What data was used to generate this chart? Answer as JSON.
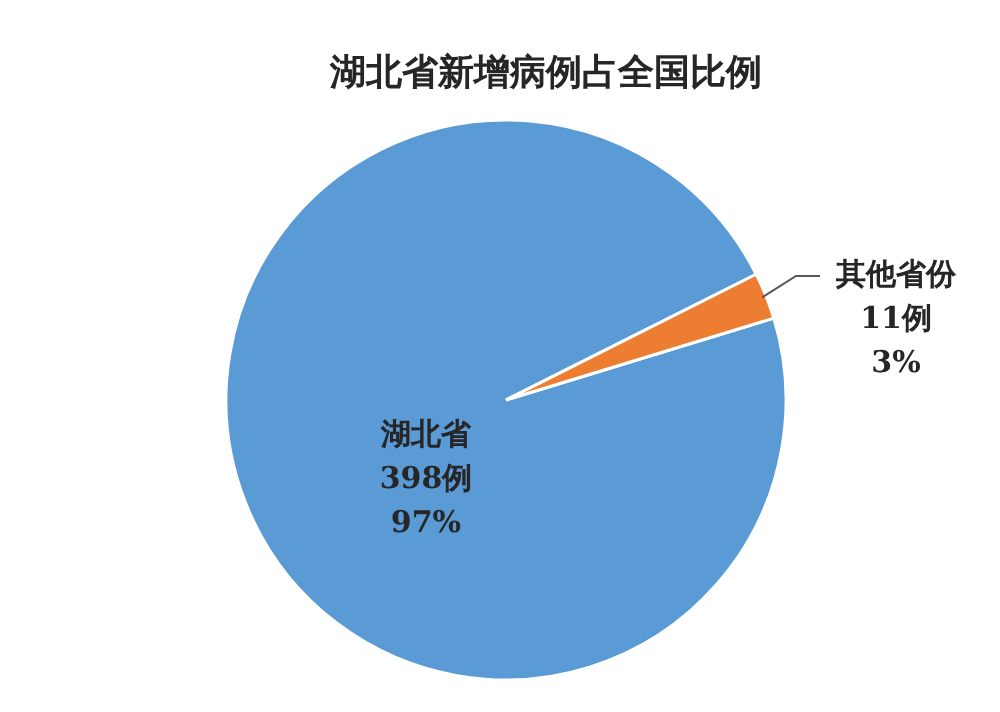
{
  "chart_data": {
    "type": "pie",
    "title": "湖北省新增病例占全国比例",
    "categories": [
      "湖北省",
      "其他省份"
    ],
    "values": [
      398,
      11
    ],
    "colors": [
      "#5b9bd5",
      "#ed7d31"
    ],
    "value_labels": [
      "398例\n97%",
      "11例\n3%"
    ]
  }
}
